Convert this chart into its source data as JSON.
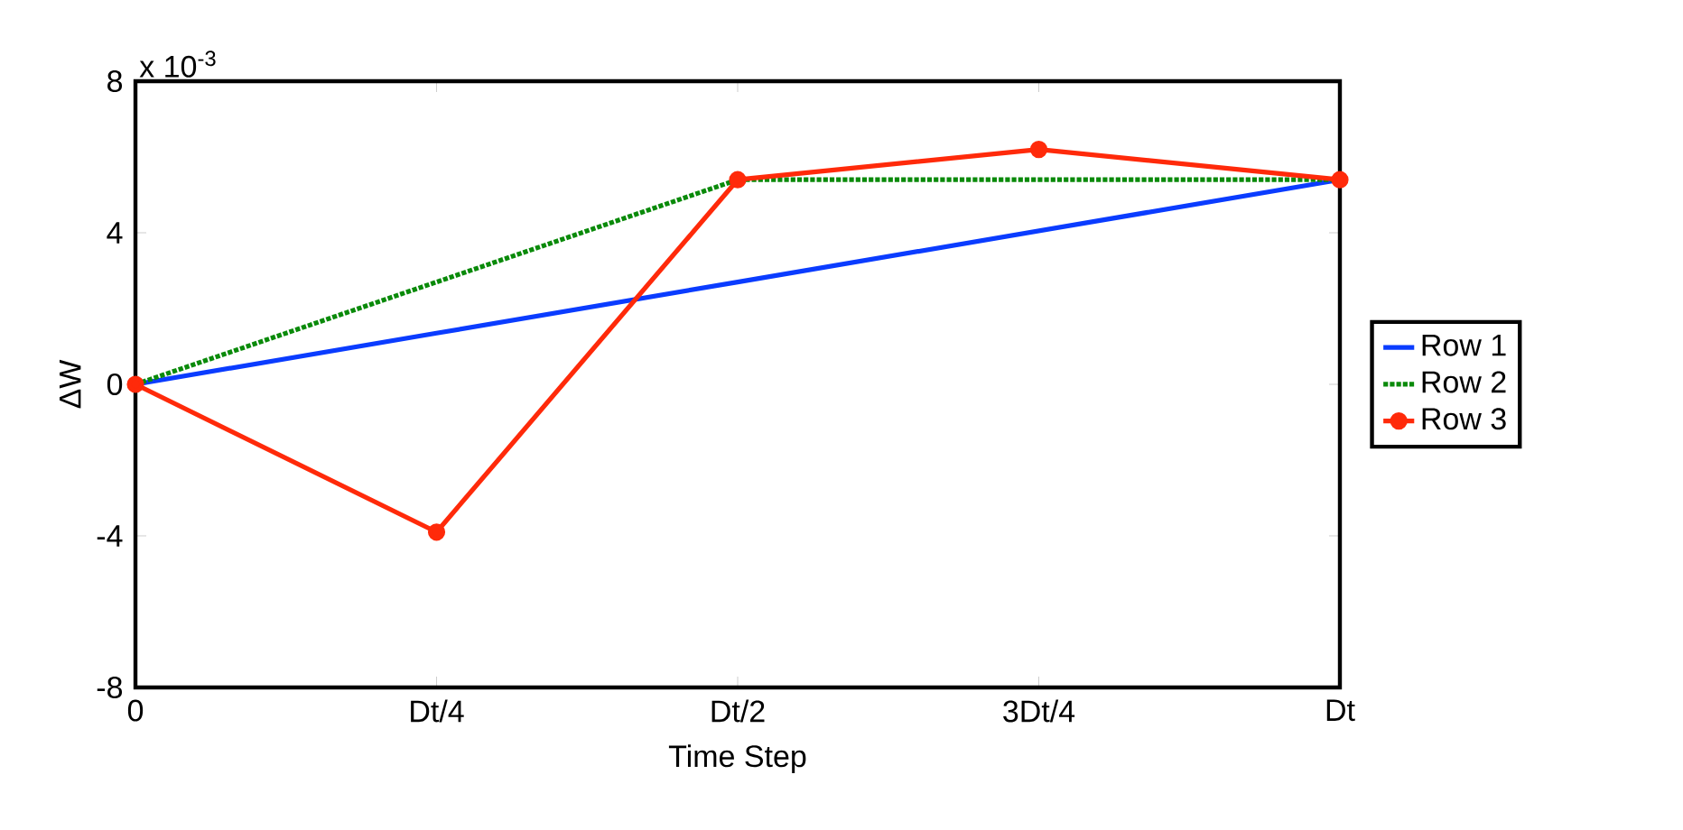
{
  "chart_data": {
    "type": "line",
    "xlabel": "Time Step",
    "ylabel": "ΔW",
    "annotations": [
      "x 10$^{-3}$"
    ],
    "categories": [
      "0",
      "Dt/4",
      "Dt/2",
      "3Dt/4",
      "Dt"
    ],
    "series": [
      {
        "name": "Row 1",
        "color": "#0a3cff",
        "values": [
          0,
          1.35,
          2.7,
          4.05,
          5.4
        ],
        "line_style": "solid",
        "marker": "none"
      },
      {
        "name": "Row 2",
        "color": "#0a8a0a",
        "values": [
          0,
          2.7,
          5.4,
          5.4,
          5.4
        ],
        "line_style": "dotted",
        "marker": "none"
      },
      {
        "name": "Row 3",
        "color": "#ff2a0a",
        "values": [
          0,
          -3.9,
          5.4,
          6.2,
          5.4
        ],
        "line_style": "solid",
        "marker": "circle"
      }
    ],
    "ylim": [
      -8,
      8
    ],
    "yticks": [
      -8,
      -4,
      0,
      4,
      8
    ],
    "grid": false,
    "legend": "right"
  }
}
